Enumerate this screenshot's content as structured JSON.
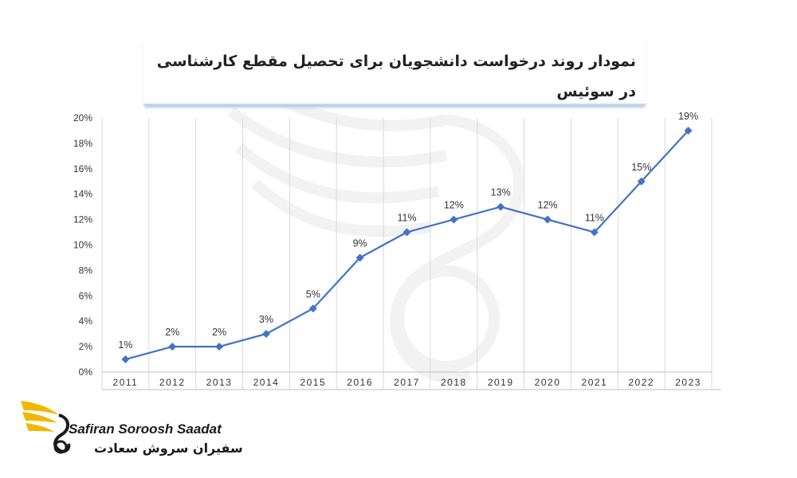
{
  "title": "نمودار روند درخواست دانشجویان برای تحصیل مقطع کارشناسی در سوئیس",
  "logo": {
    "name_en": "Safiran Soroosh Saadat",
    "name_fa": "سفیران سروش سعادت"
  },
  "colors": {
    "line": "#4472c4",
    "grid": "#d9d9d9",
    "logo_gold": "#f2b705"
  },
  "chart_data": {
    "type": "line",
    "title": "نمودار روند درخواست دانشجویان برای تحصیل مقطع کارشناسی در سوئیس",
    "categories": [
      "2011",
      "2012",
      "2013",
      "2014",
      "2015",
      "2016",
      "2017",
      "2018",
      "2019",
      "2020",
      "2021",
      "2022",
      "2023"
    ],
    "values": [
      1,
      2,
      2,
      3,
      5,
      9,
      11,
      12,
      13,
      12,
      11,
      15,
      19
    ],
    "data_labels": [
      "1%",
      "2%",
      "2%",
      "3%",
      "5%",
      "9%",
      "11%",
      "12%",
      "13%",
      "12%",
      "11%",
      "15%",
      "19%"
    ],
    "y_ticks": [
      "0%",
      "2%",
      "4%",
      "6%",
      "8%",
      "10%",
      "12%",
      "14%",
      "16%",
      "18%",
      "20%"
    ],
    "ylim": [
      0,
      20
    ],
    "grid": "vertical",
    "marker": "diamond",
    "legend": "none"
  }
}
